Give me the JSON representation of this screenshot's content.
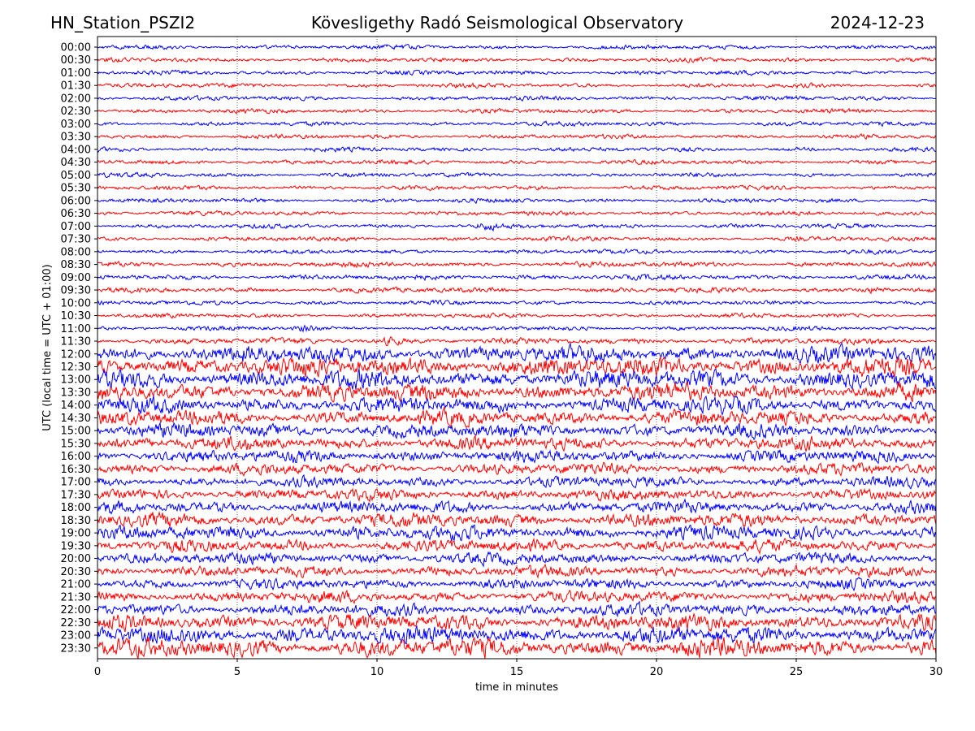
{
  "header": {
    "station": "HN_Station_PSZI2",
    "observatory": "Kövesligethy Radó Seismological Observatory",
    "date": "2024-12-23"
  },
  "chart_data": {
    "type": "line",
    "title": "Kövesligethy Radó Seismological Observatory",
    "xlabel": "time in minutes",
    "ylabel": "UTC (local time = UTC + 01:00)",
    "xlim": [
      0,
      30
    ],
    "x_ticks": [
      "0",
      "5",
      "10",
      "15",
      "20",
      "25",
      "30"
    ],
    "x_gridlines": [
      5,
      10,
      15,
      20,
      25
    ],
    "grid": "vertical dotted",
    "trace_colors": [
      "#0000ff",
      "#ff0000"
    ],
    "row_labels": [
      "00:00",
      "00:30",
      "01:00",
      "01:30",
      "02:00",
      "02:30",
      "03:00",
      "03:30",
      "04:00",
      "04:30",
      "05:00",
      "05:30",
      "06:00",
      "06:30",
      "07:00",
      "07:30",
      "08:00",
      "08:30",
      "09:00",
      "09:30",
      "10:00",
      "10:30",
      "11:00",
      "11:30",
      "12:00",
      "12:30",
      "13:00",
      "13:30",
      "14:00",
      "14:30",
      "15:00",
      "15:30",
      "16:00",
      "16:30",
      "17:00",
      "17:30",
      "18:00",
      "18:30",
      "19:00",
      "19:30",
      "20:00",
      "20:30",
      "21:00",
      "21:30",
      "22:00",
      "22:30",
      "23:00",
      "23:30"
    ],
    "relative_amplitude": [
      0.15,
      0.15,
      0.15,
      0.15,
      0.15,
      0.15,
      0.15,
      0.15,
      0.15,
      0.15,
      0.15,
      0.15,
      0.15,
      0.15,
      0.15,
      0.15,
      0.15,
      0.2,
      0.2,
      0.2,
      0.15,
      0.15,
      0.15,
      0.25,
      0.85,
      1.0,
      1.0,
      0.9,
      0.8,
      0.75,
      0.7,
      0.65,
      0.6,
      0.55,
      0.5,
      0.55,
      0.6,
      0.7,
      0.7,
      0.6,
      0.55,
      0.55,
      0.5,
      0.55,
      0.6,
      0.8,
      0.9,
      1.0
    ],
    "events": [
      {
        "row": "07:00",
        "minute": 14.0
      },
      {
        "row": "09:30",
        "minute": 27.8
      },
      {
        "row": "11:00",
        "minute": 7.5
      },
      {
        "row": "11:30",
        "minute": 10.5
      }
    ]
  }
}
